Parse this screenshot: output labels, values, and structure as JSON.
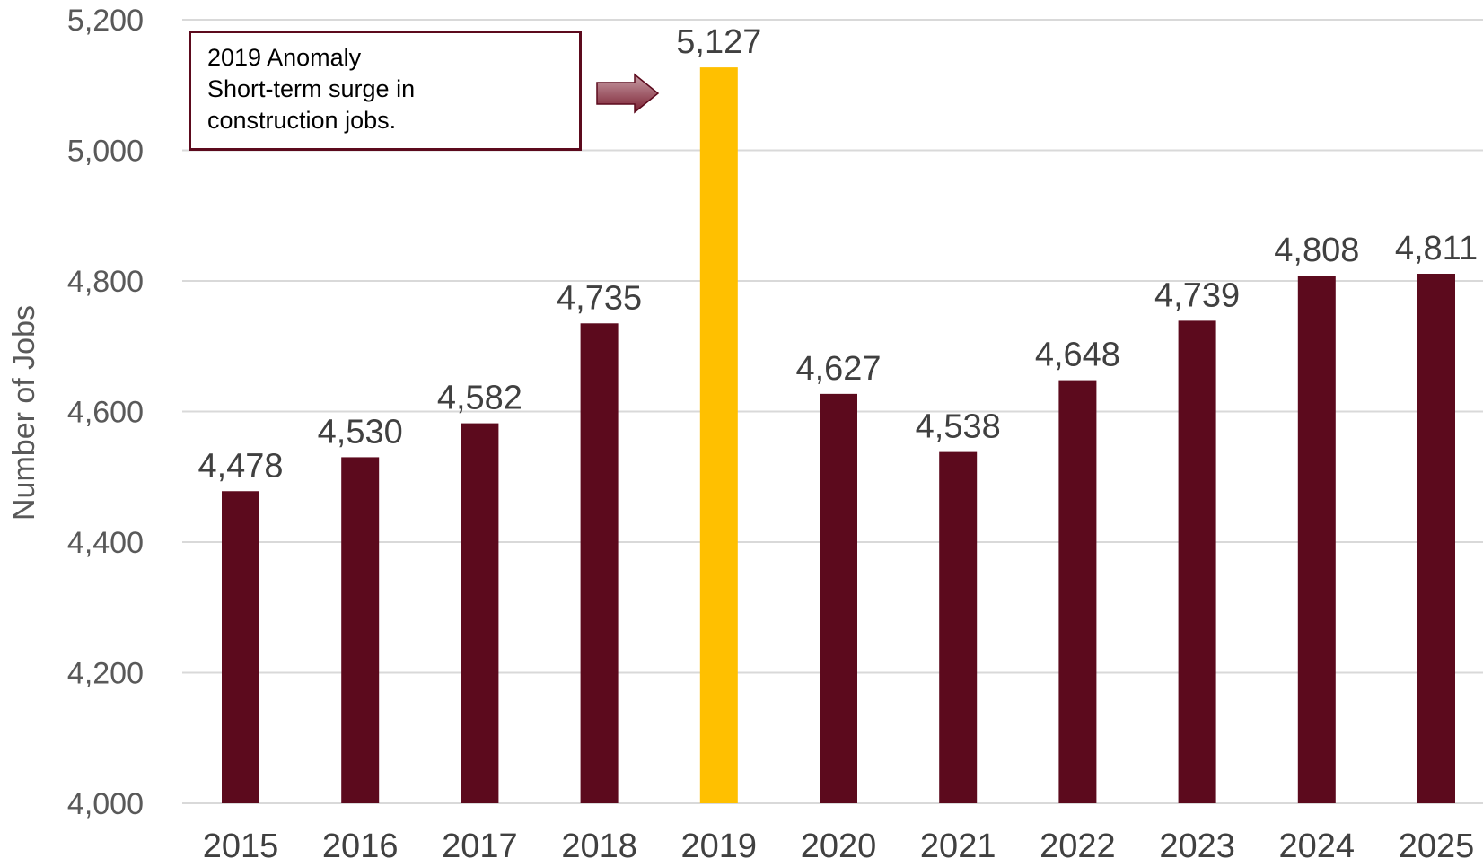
{
  "chart_data": {
    "type": "bar",
    "categories": [
      "2015",
      "2016",
      "2017",
      "2018",
      "2019",
      "2020",
      "2021",
      "2022",
      "2023",
      "2024",
      "2025"
    ],
    "values": [
      4478,
      4530,
      4582,
      4735,
      5127,
      4627,
      4538,
      4648,
      4739,
      4808,
      4811
    ],
    "value_labels": [
      "4,478",
      "4,530",
      "4,582",
      "4,735",
      "5,127",
      "4,627",
      "4,538",
      "4,648",
      "4,739",
      "4,808",
      "4,811"
    ],
    "highlight_index": 4,
    "title": "",
    "xlabel": "",
    "ylabel": "Number of Jobs",
    "ylim": [
      4000,
      5200
    ],
    "yticks": [
      4000,
      4200,
      4400,
      4600,
      4800,
      5000,
      5200
    ],
    "ytick_labels": [
      "4,000",
      "4,200",
      "4,400",
      "4,600",
      "4,800",
      "5,000",
      "5,200"
    ],
    "grid": true,
    "legend": "none",
    "colors": {
      "bar": "#5c0a1d",
      "highlight": "#ffc000",
      "grid": "#d9d9d9",
      "arrow": "#8b2c3e"
    },
    "annotation": {
      "lines": [
        "2019 Anomaly",
        "Short-term surge in",
        "construction jobs."
      ],
      "target_category": "2019"
    }
  }
}
